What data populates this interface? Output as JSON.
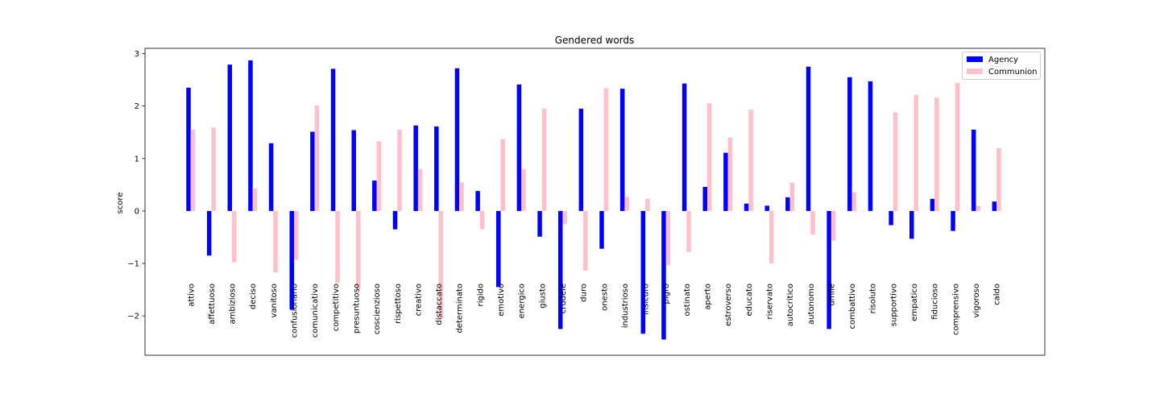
{
  "chart_data": {
    "type": "bar",
    "title": "Gendered words",
    "xlabel": "",
    "ylabel": "score",
    "ylim": [
      -2.75,
      3.1
    ],
    "yticks": [
      -2,
      -1,
      0,
      1,
      2,
      3
    ],
    "ytick_labels": [
      "−2",
      "−1",
      "0",
      "1",
      "2",
      "3"
    ],
    "grid": false,
    "legend_position": "top-right",
    "categories": [
      "attivo",
      "affettuoso",
      "ambizioso",
      "deciso",
      "vanitoso",
      "confusionario",
      "comunicativo",
      "competitivo",
      "presuntuoso",
      "coscienzioso",
      "rispettoso",
      "creativo",
      "distaccato",
      "determinato",
      "rigido",
      "emotivo",
      "energico",
      "giusto",
      "crudele",
      "duro",
      "onesto",
      "industrioso",
      "insicuro",
      "pigro",
      "ostinato",
      "aperto",
      "estroverso",
      "educato",
      "riservato",
      "autocritico",
      "autonomo",
      "umile",
      "combattivo",
      "risoluto",
      "supportivo",
      "empatico",
      "fiducioso",
      "comprensivo",
      "vigoroso",
      "caldo"
    ],
    "series": [
      {
        "name": "Agency",
        "color": "#0000ff",
        "values": [
          2.35,
          -0.85,
          2.79,
          2.87,
          1.29,
          -1.88,
          1.51,
          2.71,
          1.54,
          0.58,
          -0.35,
          1.63,
          1.61,
          2.72,
          0.38,
          -1.45,
          2.41,
          -0.49,
          -2.25,
          1.95,
          -0.72,
          2.33,
          -2.34,
          -2.45,
          2.43,
          0.46,
          1.11,
          0.14,
          0.1,
          0.26,
          2.75,
          -2.25,
          2.55,
          2.47,
          -0.27,
          -0.53,
          0.23,
          -0.38,
          1.55,
          0.18
        ]
      },
      {
        "name": "Communion",
        "color": "#ffc0cb",
        "values": [
          1.55,
          1.59,
          -0.98,
          0.43,
          -1.17,
          -0.93,
          2.01,
          -1.37,
          -1.51,
          1.33,
          1.55,
          0.8,
          -2.05,
          0.54,
          -0.35,
          1.37,
          0.8,
          1.95,
          -0.25,
          -1.14,
          2.34,
          0.27,
          0.23,
          -1.03,
          -0.78,
          2.05,
          1.4,
          1.93,
          -1.0,
          0.54,
          -0.45,
          -0.57,
          0.36,
          0.0,
          1.88,
          2.21,
          2.16,
          2.44,
          0.1,
          1.2
        ]
      }
    ]
  }
}
